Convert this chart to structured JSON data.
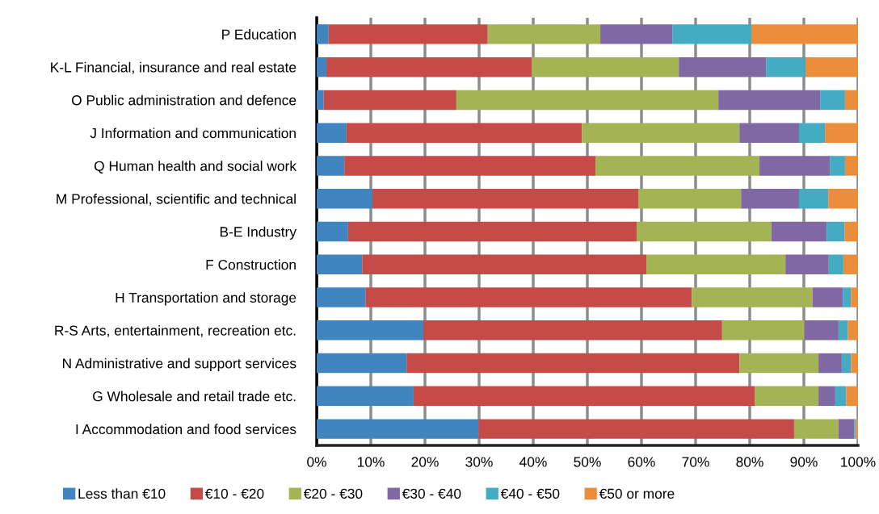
{
  "chart_data": {
    "type": "bar",
    "orientation": "horizontal",
    "stacked": true,
    "categories": [
      "P Education",
      "K-L Financial, insurance and real estate",
      "O Public administration and defence",
      "J Information and communication",
      "Q Human health and social work",
      "M Professional, scientific and technical",
      "B-E Industry",
      "F Construction",
      "H Transportation and storage",
      "R-S Arts, entertainment, recreation etc.",
      "N Administrative and support services",
      "G Wholesale and retail trade etc.",
      "I Accommodation and food services"
    ],
    "series": [
      {
        "name": "Less than €10",
        "color": "#4185c0",
        "values": [
          2.2,
          1.8,
          1.3,
          5.5,
          5.1,
          10.3,
          5.8,
          8.4,
          9.0,
          19.7,
          16.6,
          17.9,
          29.9
        ]
      },
      {
        "name": "€10 - €20",
        "color": "#c44b48",
        "values": [
          29.4,
          37.9,
          24.5,
          43.5,
          46.4,
          49.1,
          53.3,
          52.5,
          60.3,
          55.2,
          61.5,
          63.0,
          58.3
        ]
      },
      {
        "name": "€20 - €30",
        "color": "#a4b454",
        "values": [
          20.8,
          27.2,
          48.4,
          29.1,
          30.3,
          19.0,
          24.9,
          25.7,
          22.3,
          15.2,
          14.6,
          11.8,
          8.2
        ]
      },
      {
        "name": "€30 - €40",
        "color": "#7f68a3",
        "values": [
          13.3,
          16.1,
          18.8,
          11.0,
          13.0,
          10.7,
          10.2,
          8.0,
          5.6,
          6.3,
          4.3,
          3.1,
          2.9
        ]
      },
      {
        "name": "€40 - €50",
        "color": "#45abc2",
        "values": [
          14.6,
          7.3,
          4.6,
          4.8,
          2.8,
          5.4,
          3.3,
          2.7,
          1.5,
          1.7,
          1.7,
          2.0,
          0.3
        ]
      },
      {
        "name": "€50 or more",
        "color": "#ec8d3b",
        "values": [
          19.7,
          9.7,
          2.4,
          6.1,
          2.4,
          5.5,
          2.5,
          2.7,
          1.3,
          1.9,
          1.3,
          2.2,
          0.4
        ]
      }
    ],
    "xlim": [
      0,
      100
    ],
    "xticks": [
      {
        "value": 0,
        "label": "0%"
      },
      {
        "value": 10,
        "label": "10%"
      },
      {
        "value": 20,
        "label": "20%"
      },
      {
        "value": 30,
        "label": "30%"
      },
      {
        "value": 40,
        "label": "40%"
      },
      {
        "value": 50,
        "label": "50%"
      },
      {
        "value": 60,
        "label": "60%"
      },
      {
        "value": 70,
        "label": "70%"
      },
      {
        "value": 80,
        "label": "80%"
      },
      {
        "value": 90,
        "label": "90%"
      },
      {
        "value": 100,
        "label": "100%"
      }
    ],
    "grid": "x",
    "legend": "bottom"
  }
}
